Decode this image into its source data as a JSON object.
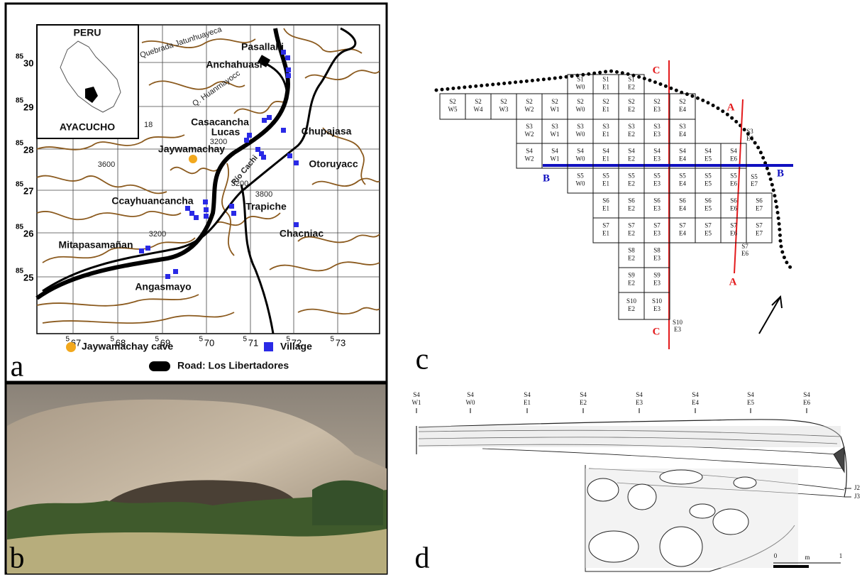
{
  "panel_letters": [
    "a",
    "b",
    "c",
    "d"
  ],
  "map": {
    "inset": {
      "country": "PERU",
      "region": "AYACUCHO"
    },
    "places": [
      "Pasallalli",
      "Anchahuasi",
      "Casacancha",
      "Lucas",
      "Chupajasa",
      "Jaywamachay",
      "Otoruyacc",
      "Ccayhuancancha",
      "Trapiche",
      "Chacniac",
      "Mitapasamañan",
      "Angasmayo"
    ],
    "contours": [
      "3200",
      "3600",
      "3200",
      "3800",
      "3200"
    ],
    "grid_number": "18",
    "river": "Río Cachi",
    "stream": "Quebrada Jatunhuayeca",
    "stream2": "Q. Huanmayocc",
    "northing": [
      {
        "sup": "85",
        "num": "30"
      },
      {
        "sup": "85",
        "num": "29"
      },
      {
        "sup": "85",
        "num": "28"
      },
      {
        "sup": "85",
        "num": "27"
      },
      {
        "sup": "85",
        "num": "26"
      },
      {
        "sup": "85",
        "num": "25"
      }
    ],
    "easting": [
      {
        "sup": "5",
        "num": "67"
      },
      {
        "sup": "5",
        "num": "68"
      },
      {
        "sup": "5",
        "num": "69"
      },
      {
        "sup": "5",
        "num": "70"
      },
      {
        "sup": "5",
        "num": "71"
      },
      {
        "sup": "5",
        "num": "72"
      },
      {
        "sup": "5",
        "num": "73"
      }
    ],
    "legend": {
      "cave": "Jaywamachay cave",
      "village": "Village",
      "road": "Road: Los Libertadores"
    }
  },
  "plan": {
    "cells": [
      [
        "S1",
        "W0"
      ],
      [
        "S1",
        "E1"
      ],
      [
        "S1",
        "E2"
      ],
      [
        "S2",
        "W5"
      ],
      [
        "S2",
        "W4"
      ],
      [
        "S2",
        "W3"
      ],
      [
        "S2",
        "W2"
      ],
      [
        "S2",
        "W1"
      ],
      [
        "S2",
        "W0"
      ],
      [
        "S2",
        "E1"
      ],
      [
        "S2",
        "E2"
      ],
      [
        "S2",
        "E3"
      ],
      [
        "S2",
        "E4"
      ],
      [
        "S3",
        "W2"
      ],
      [
        "S3",
        "W1"
      ],
      [
        "S3",
        "W0"
      ],
      [
        "S3",
        "E1"
      ],
      [
        "S3",
        "E2"
      ],
      [
        "S3",
        "E3"
      ],
      [
        "S3",
        "E4"
      ],
      [
        "S4",
        "W2"
      ],
      [
        "S4",
        "W1"
      ],
      [
        "S4",
        "W0"
      ],
      [
        "S4",
        "E1"
      ],
      [
        "S4",
        "E2"
      ],
      [
        "S4",
        "E3"
      ],
      [
        "S4",
        "E4"
      ],
      [
        "S4",
        "E5"
      ],
      [
        "S4",
        "E6"
      ],
      [
        "S5",
        "W0"
      ],
      [
        "S5",
        "E1"
      ],
      [
        "S5",
        "E2"
      ],
      [
        "S5",
        "E3"
      ],
      [
        "S5",
        "E4"
      ],
      [
        "S5",
        "E5"
      ],
      [
        "S5",
        "E6"
      ],
      [
        "S6",
        "E1"
      ],
      [
        "S6",
        "E2"
      ],
      [
        "S6",
        "E3"
      ],
      [
        "S6",
        "E4"
      ],
      [
        "S6",
        "E5"
      ],
      [
        "S6",
        "E6"
      ],
      [
        "S6",
        "E7"
      ],
      [
        "S7",
        "E1"
      ],
      [
        "S7",
        "E2"
      ],
      [
        "S7",
        "E3"
      ],
      [
        "S7",
        "E4"
      ],
      [
        "S7",
        "E5"
      ],
      [
        "S7",
        "E6"
      ],
      [
        "S7",
        "E7"
      ],
      [
        "S8",
        "E2"
      ],
      [
        "S8",
        "E3"
      ],
      [
        "S9",
        "E2"
      ],
      [
        "S9",
        "E3"
      ],
      [
        "S10",
        "E2"
      ],
      [
        "S10",
        "E3"
      ]
    ],
    "outer_labels": [
      [
        "S3",
        "E6"
      ],
      [
        "S5",
        "E7"
      ],
      [
        "S7",
        "E6"
      ],
      [
        "S10",
        "E3"
      ]
    ],
    "section_letters": [
      "C",
      "C",
      "A",
      "A",
      "B",
      "B"
    ]
  },
  "section": {
    "stations": [
      [
        "S4",
        "W1"
      ],
      [
        "S4",
        "W0"
      ],
      [
        "S4",
        "E1"
      ],
      [
        "S4",
        "E2"
      ],
      [
        "S4",
        "E3"
      ],
      [
        "S4",
        "E4"
      ],
      [
        "S4",
        "E5"
      ],
      [
        "S4",
        "E6"
      ]
    ],
    "layers": [
      "J2",
      "J3"
    ],
    "scale": {
      "start": "0",
      "unit": "m",
      "end": "1"
    }
  }
}
